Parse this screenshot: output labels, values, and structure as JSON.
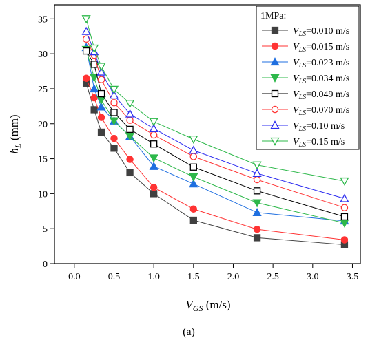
{
  "chart_data": {
    "type": "line",
    "xlabel_main": "V",
    "xlabel_sub": "GS",
    "xlabel_unit": " (m/s)",
    "ylabel_main": "h",
    "ylabel_sub": "L",
    "ylabel_unit": " (mm)",
    "xlim": [
      -0.25,
      3.6
    ],
    "ylim": [
      0,
      37
    ],
    "xticks": [
      "0.0",
      "0.5",
      "1.0",
      "1.5",
      "2.0",
      "2.5",
      "3.0",
      "3.5"
    ],
    "yticks": [
      "0",
      "5",
      "10",
      "15",
      "20",
      "25",
      "30",
      "35"
    ],
    "grid": false,
    "legend_placement": "top-right",
    "legend_title": "1MPa:",
    "caption": "(a)",
    "x": [
      0.15,
      0.25,
      0.34,
      0.5,
      0.7,
      1.0,
      1.5,
      2.3,
      3.4
    ],
    "series": [
      {
        "name_main": "V",
        "name_sub": "LS",
        "name_rest": "=0.010 m/s",
        "color": "#404040",
        "marker": "square",
        "filled": true,
        "values": [
          25.8,
          22.0,
          18.8,
          16.5,
          13.0,
          10.0,
          6.2,
          3.7,
          2.7
        ]
      },
      {
        "name_main": "V",
        "name_sub": "LS",
        "name_rest": "=0.015 m/s",
        "color": "#ff3333",
        "marker": "circle",
        "filled": true,
        "values": [
          26.5,
          23.7,
          20.9,
          17.9,
          14.9,
          10.9,
          7.8,
          4.9,
          3.4
        ]
      },
      {
        "name_main": "V",
        "name_sub": "LS",
        "name_rest": "=0.023 m/s",
        "color": "#1f6fe0",
        "marker": "triangle-up",
        "filled": true,
        "values": [
          30.9,
          25.0,
          22.4,
          20.4,
          18.2,
          13.9,
          11.4,
          7.3,
          6.1
        ]
      },
      {
        "name_main": "V",
        "name_sub": "LS",
        "name_rest": "=0.034 m/s",
        "color": "#2db84a",
        "marker": "triangle-down",
        "filled": true,
        "values": [
          30.6,
          26.6,
          23.4,
          20.4,
          18.2,
          15.1,
          12.4,
          8.7,
          5.8
        ]
      },
      {
        "name_main": "V",
        "name_sub": "LS",
        "name_rest": "=0.049 m/s",
        "color": "#000000",
        "marker": "square",
        "filled": false,
        "values": [
          30.4,
          28.5,
          24.3,
          21.6,
          19.2,
          17.1,
          13.8,
          10.4,
          6.7
        ]
      },
      {
        "name_main": "V",
        "name_sub": "LS",
        "name_rest": "=0.070 m/s",
        "color": "#ff3333",
        "marker": "circle",
        "filled": false,
        "values": [
          32.1,
          29.8,
          26.3,
          23.0,
          20.5,
          18.4,
          15.3,
          12.0,
          8.0
        ]
      },
      {
        "name_main": "V",
        "name_sub": "LS",
        "name_rest": "=0.10 m/s",
        "color": "#2d2df0",
        "marker": "triangle-up",
        "filled": false,
        "values": [
          33.2,
          30.3,
          27.4,
          24.1,
          21.4,
          19.3,
          16.2,
          12.9,
          9.3
        ]
      },
      {
        "name_main": "V",
        "name_sub": "LS",
        "name_rest": "=0.15 m/s",
        "color": "#2db84a",
        "marker": "triangle-down",
        "filled": false,
        "values": [
          35.0,
          30.8,
          28.2,
          24.9,
          22.9,
          20.3,
          17.8,
          14.1,
          11.8
        ]
      }
    ]
  }
}
